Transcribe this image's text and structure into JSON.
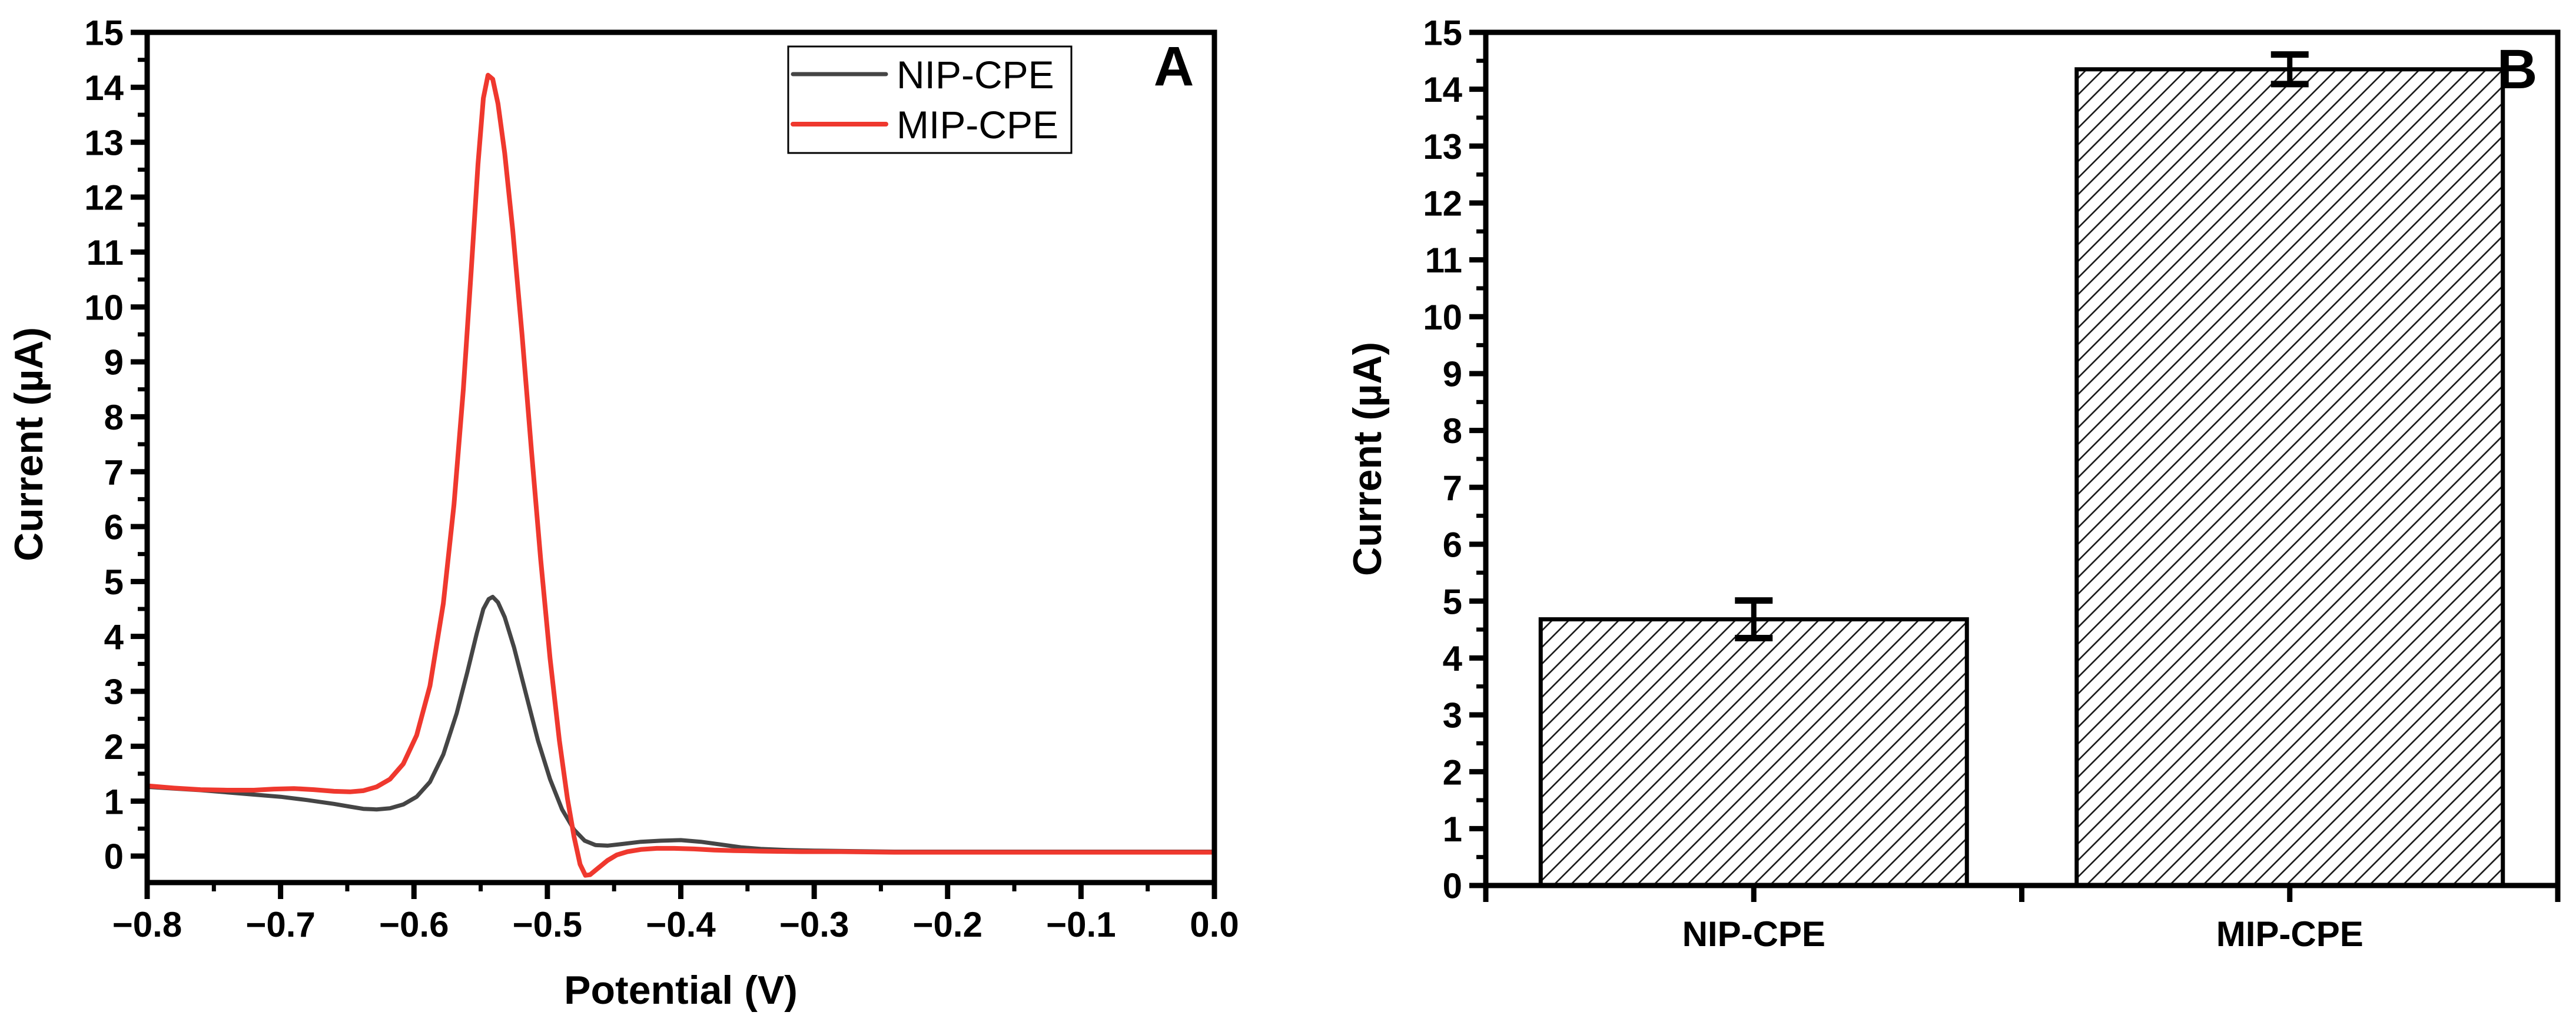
{
  "figure": {
    "background": "#ffffff",
    "text_color": "#000000",
    "axis_color": "#000000"
  },
  "chart_data": [
    {
      "id": "panel_a",
      "type": "line",
      "panel_label": "A",
      "xlabel": "Potential (V)",
      "ylabel": "Current (µA)",
      "xlim": [
        -0.8,
        0.0
      ],
      "ylim": [
        -0.48,
        15
      ],
      "grid": false,
      "x_major_ticks": [
        -0.8,
        -0.7,
        -0.6,
        -0.5,
        -0.4,
        -0.3,
        -0.2,
        -0.1,
        0.0
      ],
      "x_tick_labels": [
        "−0.8",
        "−0.7",
        "−0.6",
        "−0.5",
        "−0.4",
        "−0.3",
        "−0.2",
        "−0.1",
        "0.0"
      ],
      "x_minor_step": 0.05,
      "y_major_ticks": [
        0,
        1,
        2,
        3,
        4,
        5,
        6,
        7,
        8,
        9,
        10,
        11,
        12,
        13,
        14,
        15
      ],
      "y_minor_step": 0.5,
      "legend": {
        "position": "top-left-inside",
        "entries": [
          {
            "label": "NIP-CPE",
            "color": "#454545"
          },
          {
            "label": "MIP-CPE",
            "color": "#ef382e"
          }
        ]
      },
      "series": [
        {
          "name": "NIP-CPE",
          "color": "#454545",
          "width": 7,
          "points": [
            [
              -0.8,
              1.26
            ],
            [
              -0.78,
              1.23
            ],
            [
              -0.76,
              1.2
            ],
            [
              -0.74,
              1.16
            ],
            [
              -0.72,
              1.12
            ],
            [
              -0.7,
              1.08
            ],
            [
              -0.68,
              1.02
            ],
            [
              -0.66,
              0.95
            ],
            [
              -0.648,
              0.9
            ],
            [
              -0.638,
              0.86
            ],
            [
              -0.628,
              0.85
            ],
            [
              -0.618,
              0.87
            ],
            [
              -0.608,
              0.94
            ],
            [
              -0.598,
              1.08
            ],
            [
              -0.588,
              1.35
            ],
            [
              -0.578,
              1.85
            ],
            [
              -0.568,
              2.6
            ],
            [
              -0.56,
              3.35
            ],
            [
              -0.553,
              4.05
            ],
            [
              -0.548,
              4.5
            ],
            [
              -0.544,
              4.68
            ],
            [
              -0.541,
              4.72
            ],
            [
              -0.537,
              4.62
            ],
            [
              -0.532,
              4.35
            ],
            [
              -0.525,
              3.8
            ],
            [
              -0.516,
              2.95
            ],
            [
              -0.507,
              2.1
            ],
            [
              -0.498,
              1.4
            ],
            [
              -0.489,
              0.85
            ],
            [
              -0.48,
              0.48
            ],
            [
              -0.472,
              0.28
            ],
            [
              -0.464,
              0.2
            ],
            [
              -0.455,
              0.19
            ],
            [
              -0.444,
              0.22
            ],
            [
              -0.43,
              0.26
            ],
            [
              -0.415,
              0.28
            ],
            [
              -0.4,
              0.29
            ],
            [
              -0.385,
              0.26
            ],
            [
              -0.37,
              0.21
            ],
            [
              -0.355,
              0.16
            ],
            [
              -0.34,
              0.13
            ],
            [
              -0.32,
              0.11
            ],
            [
              -0.3,
              0.1
            ],
            [
              -0.27,
              0.09
            ],
            [
              -0.24,
              0.08
            ],
            [
              -0.2,
              0.08
            ],
            [
              -0.16,
              0.08
            ],
            [
              -0.12,
              0.08
            ],
            [
              -0.08,
              0.08
            ],
            [
              -0.04,
              0.08
            ],
            [
              0.0,
              0.08
            ]
          ]
        },
        {
          "name": "MIP-CPE",
          "color": "#ef382e",
          "width": 8,
          "points": [
            [
              -0.8,
              1.28
            ],
            [
              -0.78,
              1.24
            ],
            [
              -0.76,
              1.21
            ],
            [
              -0.74,
              1.2
            ],
            [
              -0.72,
              1.2
            ],
            [
              -0.705,
              1.22
            ],
            [
              -0.69,
              1.23
            ],
            [
              -0.675,
              1.21
            ],
            [
              -0.66,
              1.18
            ],
            [
              -0.648,
              1.17
            ],
            [
              -0.638,
              1.19
            ],
            [
              -0.628,
              1.26
            ],
            [
              -0.618,
              1.4
            ],
            [
              -0.608,
              1.68
            ],
            [
              -0.598,
              2.2
            ],
            [
              -0.588,
              3.1
            ],
            [
              -0.578,
              4.6
            ],
            [
              -0.57,
              6.4
            ],
            [
              -0.563,
              8.5
            ],
            [
              -0.557,
              10.7
            ],
            [
              -0.552,
              12.6
            ],
            [
              -0.548,
              13.8
            ],
            [
              -0.5445,
              14.22
            ],
            [
              -0.541,
              14.15
            ],
            [
              -0.537,
              13.7
            ],
            [
              -0.532,
              12.8
            ],
            [
              -0.526,
              11.4
            ],
            [
              -0.519,
              9.5
            ],
            [
              -0.512,
              7.4
            ],
            [
              -0.505,
              5.4
            ],
            [
              -0.498,
              3.6
            ],
            [
              -0.491,
              2.1
            ],
            [
              -0.485,
              1.05
            ],
            [
              -0.48,
              0.35
            ],
            [
              -0.4755,
              -0.15
            ],
            [
              -0.4715,
              -0.35
            ],
            [
              -0.468,
              -0.34
            ],
            [
              -0.462,
              -0.22
            ],
            [
              -0.455,
              -0.08
            ],
            [
              -0.448,
              0.02
            ],
            [
              -0.44,
              0.08
            ],
            [
              -0.43,
              0.12
            ],
            [
              -0.418,
              0.14
            ],
            [
              -0.405,
              0.14
            ],
            [
              -0.39,
              0.13
            ],
            [
              -0.375,
              0.11
            ],
            [
              -0.36,
              0.1
            ],
            [
              -0.34,
              0.09
            ],
            [
              -0.31,
              0.08
            ],
            [
              -0.28,
              0.08
            ],
            [
              -0.24,
              0.07
            ],
            [
              -0.2,
              0.07
            ],
            [
              -0.16,
              0.07
            ],
            [
              -0.12,
              0.07
            ],
            [
              -0.08,
              0.07
            ],
            [
              -0.04,
              0.07
            ],
            [
              0.0,
              0.07
            ]
          ]
        }
      ]
    },
    {
      "id": "panel_b",
      "type": "bar",
      "panel_label": "B",
      "xlabel": "",
      "ylabel": "Current (µA)",
      "ylim": [
        0,
        15
      ],
      "grid": false,
      "y_major_ticks": [
        0,
        1,
        2,
        3,
        4,
        5,
        6,
        7,
        8,
        9,
        10,
        11,
        12,
        13,
        14,
        15
      ],
      "y_minor_step": 0.5,
      "categories": [
        "NIP-CPE",
        "MIP-CPE"
      ],
      "values": [
        4.68,
        14.35
      ],
      "errors": [
        0.33,
        0.26
      ],
      "bar_fill": "hatched-diagonal",
      "hatch_direction": "forward-slash",
      "bar_edge_color": "#000000",
      "bar_face_color": "#ffffff"
    }
  ]
}
